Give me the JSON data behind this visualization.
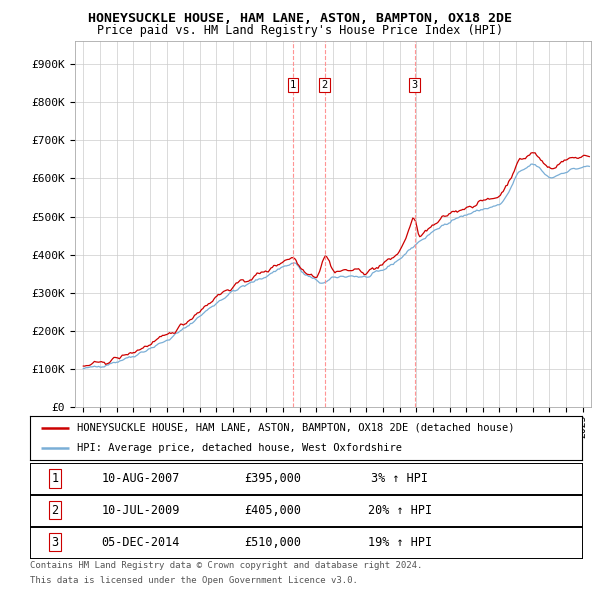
{
  "title": "HONEYSUCKLE HOUSE, HAM LANE, ASTON, BAMPTON, OX18 2DE",
  "subtitle": "Price paid vs. HM Land Registry's House Price Index (HPI)",
  "ylabel_ticks": [
    "£0",
    "£100K",
    "£200K",
    "£300K",
    "£400K",
    "£500K",
    "£600K",
    "£700K",
    "£800K",
    "£900K"
  ],
  "ytick_values": [
    0,
    100000,
    200000,
    300000,
    400000,
    500000,
    600000,
    700000,
    800000,
    900000
  ],
  "ylim": [
    0,
    960000
  ],
  "xlim_start": 1994.5,
  "xlim_end": 2025.5,
  "transactions": [
    {
      "label": "1",
      "date_year": 2007.6,
      "price": 395000,
      "date_str": "10-AUG-2007",
      "price_str": "£395,000",
      "hpi_str": "3% ↑ HPI"
    },
    {
      "label": "2",
      "date_year": 2009.5,
      "price": 405000,
      "date_str": "10-JUL-2009",
      "price_str": "£405,000",
      "hpi_str": "20% ↑ HPI"
    },
    {
      "label": "3",
      "date_year": 2014.9,
      "price": 510000,
      "date_str": "05-DEC-2014",
      "price_str": "£510,000",
      "hpi_str": "19% ↑ HPI"
    }
  ],
  "legend_house": "HONEYSUCKLE HOUSE, HAM LANE, ASTON, BAMPTON, OX18 2DE (detached house)",
  "legend_hpi": "HPI: Average price, detached house, West Oxfordshire",
  "footer_line1": "Contains HM Land Registry data © Crown copyright and database right 2024.",
  "footer_line2": "This data is licensed under the Open Government Licence v3.0.",
  "house_color": "#cc0000",
  "hpi_color": "#7aaed6",
  "vline_color": "#ff8888",
  "box_color": "#cc0000",
  "grid_color": "#cccccc",
  "bg_color": "#ffffff",
  "title_fontsize": 9.5,
  "subtitle_fontsize": 8.5,
  "ytick_fontsize": 8,
  "xtick_fontsize": 7,
  "legend_fontsize": 7.5,
  "table_fontsize": 8.5,
  "footer_fontsize": 6.5
}
